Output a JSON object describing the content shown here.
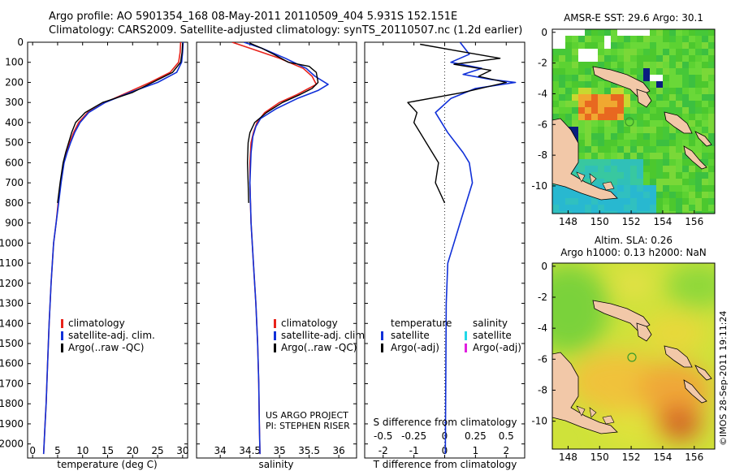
{
  "header": {
    "line1": "Argo profile: AO 5901354_168 08-May-2011 20110509_404 5.931S 152.151E",
    "line2": "Climatology: CARS2009. Satellite-adjusted climatology: synTS_20110507.nc (1.2d earlier)"
  },
  "colors": {
    "climatology": "#e8221a",
    "satellite": "#1030d8",
    "argo": "#000000",
    "sat_s": "#22d8e8",
    "argo_s": "#e020e0",
    "land": "#f2c8a8",
    "marker": "#3a9a2a"
  },
  "chart_data": [
    {
      "type": "line",
      "id": "temperature",
      "xlabel": "temperature (deg C)",
      "ylabel": "",
      "xlim": [
        -1,
        31
      ],
      "ylim": [
        2070,
        0
      ],
      "xticks": [
        "0",
        "5",
        "10",
        "15",
        "20",
        "25",
        "30"
      ],
      "xtick_values": [
        0,
        5,
        10,
        15,
        20,
        25,
        30
      ],
      "yticks": [
        "0",
        "100",
        "200",
        "300",
        "400",
        "500",
        "600",
        "700",
        "800",
        "900",
        "1000",
        "1100",
        "1200",
        "1300",
        "1400",
        "1500",
        "1600",
        "1700",
        "1800",
        "1900",
        "2000"
      ],
      "ytick_values": [
        0,
        100,
        200,
        300,
        400,
        500,
        600,
        700,
        800,
        900,
        1000,
        1100,
        1200,
        1300,
        1400,
        1500,
        1600,
        1700,
        1800,
        1900,
        2000
      ],
      "legend": [
        "climatology",
        "satellite-adj. clim.",
        "Argo(..raw -QC)"
      ],
      "series": [
        {
          "name": "climatology",
          "color": "#e8221a",
          "width": 1.6,
          "x": [
            29.6,
            29.5,
            29.2,
            27.5,
            23.5,
            19.0,
            14.5,
            11.0,
            9.2,
            8.2,
            7.4,
            6.8,
            6.2,
            5.6,
            5.1,
            4.7,
            4.2,
            3.7,
            3.3,
            3.0,
            2.7,
            2.5,
            2.3,
            2.2
          ],
          "y": [
            0,
            50,
            100,
            150,
            200,
            250,
            300,
            350,
            400,
            450,
            500,
            550,
            600,
            700,
            800,
            900,
            1000,
            1200,
            1400,
            1600,
            1800,
            1900,
            2000,
            2050
          ]
        },
        {
          "name": "satellite-adj. clim.",
          "color": "#1030d8",
          "width": 1.6,
          "x": [
            30.1,
            30.0,
            29.8,
            28.8,
            25.0,
            19.5,
            14.5,
            11.2,
            9.5,
            8.4,
            7.6,
            6.9,
            6.3,
            5.7,
            5.2,
            4.7,
            4.2,
            3.7,
            3.3,
            3.0,
            2.7,
            2.5,
            2.3,
            2.2
          ],
          "y": [
            0,
            50,
            100,
            150,
            200,
            250,
            300,
            350,
            400,
            450,
            500,
            550,
            600,
            700,
            800,
            900,
            1000,
            1200,
            1400,
            1600,
            1800,
            1900,
            2000,
            2050
          ]
        },
        {
          "name": "Argo(..raw -QC)",
          "color": "#000000",
          "width": 1.4,
          "x": [
            30.0,
            29.9,
            29.6,
            28.0,
            24.0,
            20.0,
            14.0,
            10.5,
            8.6,
            7.8,
            7.2,
            6.6,
            6.1,
            5.5,
            5.0
          ],
          "y": [
            5,
            50,
            100,
            150,
            200,
            250,
            300,
            350,
            400,
            450,
            500,
            550,
            600,
            700,
            800
          ]
        }
      ]
    },
    {
      "type": "line",
      "id": "salinity",
      "xlabel": "salinity",
      "xlim": [
        33.6,
        36.3
      ],
      "ylim": [
        2070,
        0
      ],
      "xticks": [
        "34",
        "34.5",
        "35",
        "35.5",
        "36"
      ],
      "xtick_values": [
        34,
        34.5,
        35,
        35.5,
        36
      ],
      "legend": [
        "climatology",
        "satellite-adj. clim.",
        "Argo(..raw -QC)"
      ],
      "annotation": [
        "US ARGO PROJECT",
        "PI: STEPHEN RISER"
      ],
      "series": [
        {
          "name": "climatology",
          "color": "#e8221a",
          "width": 1.6,
          "x": [
            34.2,
            34.5,
            35.0,
            35.4,
            35.55,
            35.62,
            35.3,
            35.0,
            34.75,
            34.62,
            34.56,
            34.52,
            34.5,
            34.5,
            34.52,
            34.56,
            34.6,
            34.63,
            34.65,
            34.66,
            34.67
          ],
          "y": [
            0,
            30,
            80,
            130,
            170,
            210,
            260,
            300,
            350,
            400,
            450,
            500,
            600,
            700,
            900,
            1100,
            1300,
            1500,
            1700,
            1900,
            2050
          ]
        },
        {
          "name": "satellite-adj. clim.",
          "color": "#1030d8",
          "width": 1.6,
          "x": [
            34.4,
            34.7,
            35.1,
            35.45,
            35.6,
            35.82,
            35.65,
            35.3,
            34.95,
            34.68,
            34.6,
            34.55,
            34.52,
            34.5,
            34.52,
            34.56,
            34.6,
            34.63,
            34.65,
            34.66,
            34.67
          ],
          "y": [
            0,
            30,
            80,
            130,
            170,
            210,
            240,
            280,
            330,
            380,
            420,
            470,
            550,
            700,
            900,
            1100,
            1300,
            1500,
            1700,
            1900,
            2050
          ]
        },
        {
          "name": "Argo(..raw -QC)",
          "color": "#000000",
          "width": 1.4,
          "x": [
            34.5,
            34.7,
            34.9,
            35.15,
            35.5,
            35.62,
            35.65,
            35.55,
            35.35,
            35.05,
            34.78,
            34.58,
            34.5,
            34.47,
            34.46,
            34.47,
            34.48
          ],
          "y": [
            5,
            30,
            60,
            100,
            120,
            150,
            200,
            230,
            260,
            300,
            350,
            400,
            450,
            500,
            600,
            700,
            800
          ]
        }
      ]
    },
    {
      "type": "line",
      "id": "differences",
      "xlabel": "T difference from climatology",
      "xlabel2": "S difference from climatology",
      "xlim": [
        -2.6,
        2.6
      ],
      "ylim": [
        2070,
        0
      ],
      "xticks": [
        "-2",
        "-1",
        "0",
        "1",
        "2"
      ],
      "xtick_values": [
        -2,
        -1,
        0,
        1,
        2
      ],
      "xticks2": [
        "-0.5",
        "-0.25",
        "0",
        "0.25",
        "0.5"
      ],
      "xtick2_values": [
        -0.5,
        -0.25,
        0,
        0.25,
        0.5
      ],
      "legend_t": {
        "title": "temperature",
        "items": [
          "satellite",
          "Argo(-adj)"
        ]
      },
      "legend_s": {
        "title": "salinity",
        "items": [
          "satellite",
          "Argo(-adj)"
        ]
      },
      "series": [
        {
          "name": "T satellite",
          "color": "#1030d8",
          "width": 1.6,
          "x": [
            0.5,
            0.8,
            0.2,
            1.2,
            0.6,
            1.5,
            2.3,
            1.0,
            0.2,
            -0.3,
            0.1,
            0.6,
            0.8,
            0.9,
            0.7,
            0.5,
            0.3,
            0.1,
            0.05,
            0.02
          ],
          "y": [
            0,
            60,
            100,
            130,
            160,
            185,
            200,
            230,
            280,
            350,
            450,
            550,
            600,
            700,
            800,
            900,
            1000,
            1100,
            1300,
            2050
          ]
        },
        {
          "name": "T Argo(-adj)",
          "color": "#000000",
          "width": 1.4,
          "x": [
            -0.8,
            0.3,
            1.8,
            0.3,
            1.5,
            1.1,
            2.0,
            0.6,
            -1.2,
            -0.9,
            -1.0,
            -0.8,
            -0.6,
            -0.2,
            -0.3,
            0.0
          ],
          "y": [
            10,
            40,
            80,
            110,
            140,
            170,
            200,
            250,
            300,
            350,
            400,
            450,
            500,
            600,
            700,
            800
          ]
        },
        {
          "name": "S satellite",
          "color": "#22d8e8",
          "width": 1.6,
          "x": [
            -0.08,
            -0.05,
            -0.1,
            -0.06,
            0.02,
            0.1,
            0.06,
            0.02,
            0.0,
            -0.02,
            -0.01,
            0.0,
            0.0,
            0.0
          ],
          "y": [
            0,
            50,
            100,
            150,
            200,
            240,
            280,
            320,
            400,
            600,
            800,
            1200,
            1600,
            2050
          ]
        },
        {
          "name": "S Argo(-adj)",
          "color": "#e020e0",
          "width": 1.4,
          "x": [
            0.22,
            0.1,
            0.0,
            0.12,
            0.08,
            0.05,
            -0.05,
            -0.1,
            -0.08,
            -0.05,
            -0.03,
            -0.02
          ],
          "y": [
            10,
            40,
            80,
            120,
            160,
            200,
            250,
            300,
            400,
            500,
            600,
            800
          ]
        }
      ]
    },
    {
      "type": "heatmap",
      "id": "sst-map",
      "title": "AMSR-E SST: 29.6  Argo: 30.1",
      "xlim": [
        147,
        157.3
      ],
      "ylim": [
        -11.8,
        0.2
      ],
      "xticks": [
        "148",
        "150",
        "152",
        "154",
        "156"
      ],
      "xtick_values": [
        148,
        150,
        152,
        154,
        156
      ],
      "yticks": [
        "0",
        "-2",
        "-4",
        "-6",
        "-8",
        "-10"
      ],
      "ytick_values": [
        0,
        -2,
        -4,
        -6,
        -8,
        -10
      ],
      "marker": [
        152.15,
        -5.93
      ]
    },
    {
      "type": "heatmap",
      "id": "sla-map",
      "title": "Altim. SLA: 0.26",
      "subtitle": "Argo h1000: 0.13 h2000: NaN",
      "xlim": [
        147,
        157.3
      ],
      "ylim": [
        -11.8,
        0.2
      ],
      "xticks": [
        "148",
        "150",
        "152",
        "154",
        "156"
      ],
      "xtick_values": [
        148,
        150,
        152,
        154,
        156
      ],
      "yticks": [
        "0",
        "-2",
        "-4",
        "-6",
        "-8",
        "-10"
      ],
      "ytick_values": [
        0,
        -2,
        -4,
        -6,
        -8,
        -10
      ],
      "marker": [
        152.15,
        -5.93
      ]
    }
  ],
  "footer": {
    "credit": "©IMOS 28-Sep-2011 19:11:24"
  }
}
